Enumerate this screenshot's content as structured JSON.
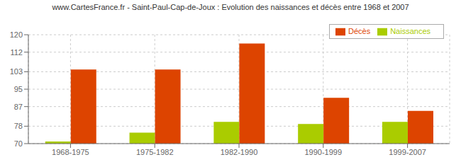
{
  "chart_data": {
    "type": "bar",
    "title": "www.CartesFrance.fr - Saint-Paul-Cap-de-Joux : Evolution des naissances et décès entre 1968 et 2007",
    "categories": [
      "1968-1975",
      "1975-1982",
      "1982-1990",
      "1990-1999",
      "1999-2007"
    ],
    "series": [
      {
        "name": "Naissances",
        "color": "#aacc00",
        "values": [
          71,
          75,
          80,
          79,
          80
        ]
      },
      {
        "name": "Décès",
        "color": "#dd4400",
        "values": [
          104,
          104,
          116,
          91,
          85
        ]
      }
    ],
    "ylim": [
      70,
      120
    ],
    "yticks": [
      70,
      78,
      87,
      95,
      103,
      112,
      120
    ],
    "grid": true,
    "legend": "upper right"
  }
}
